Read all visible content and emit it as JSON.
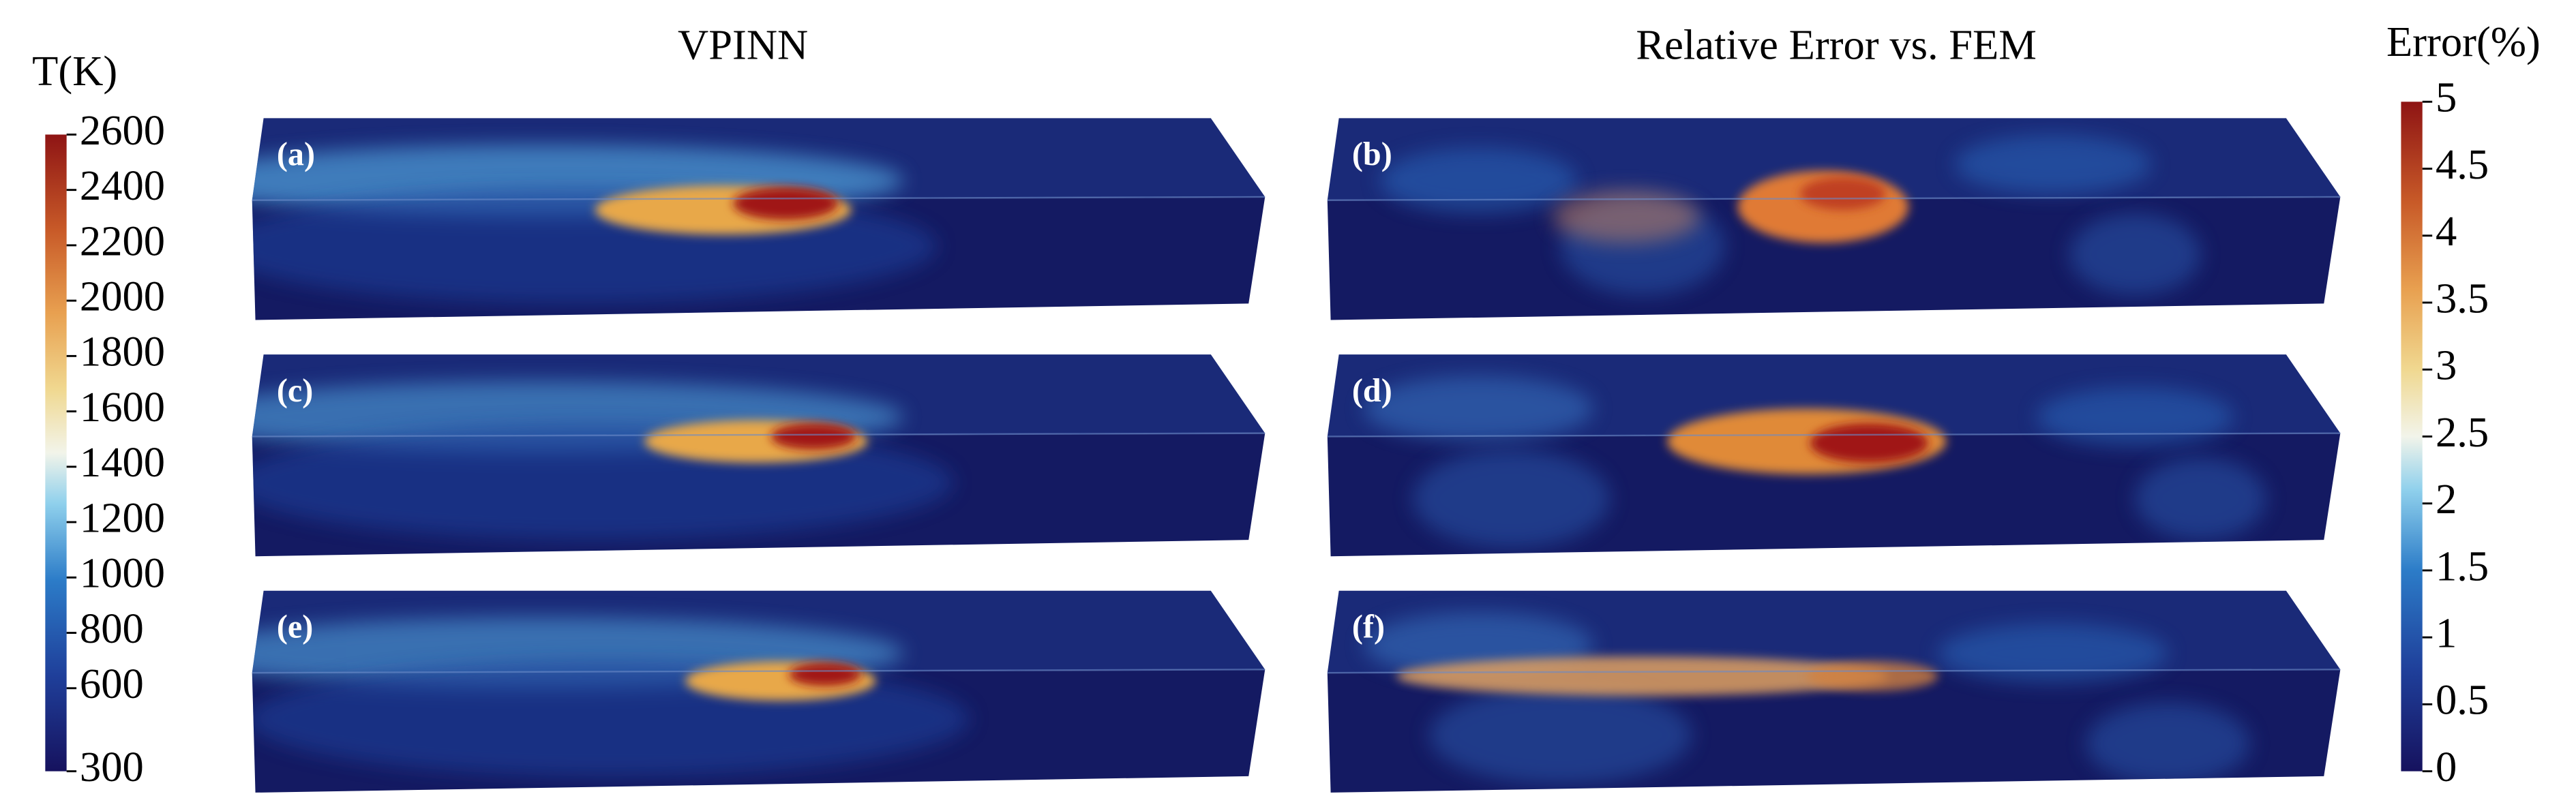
{
  "header": {
    "left_title": "VPINN",
    "right_title": "Relative Error vs. FEM"
  },
  "temperature_colorbar": {
    "label": "T(K)",
    "vlim": [
      300,
      2600
    ],
    "ticks": [
      2600,
      2400,
      2200,
      2000,
      1800,
      1600,
      1400,
      1200,
      1000,
      800,
      600,
      300
    ]
  },
  "error_colorbar": {
    "label": "Error(%)",
    "vlim": [
      0,
      5
    ],
    "ticks": [
      5,
      4.5,
      4,
      3.5,
      3,
      2.5,
      2,
      1.5,
      1,
      0.5,
      0
    ]
  },
  "panels": [
    {
      "label": "(a)"
    },
    {
      "label": "(b)"
    },
    {
      "label": "(c)"
    },
    {
      "label": "(d)"
    },
    {
      "label": "(e)"
    },
    {
      "label": "(f)"
    }
  ]
}
